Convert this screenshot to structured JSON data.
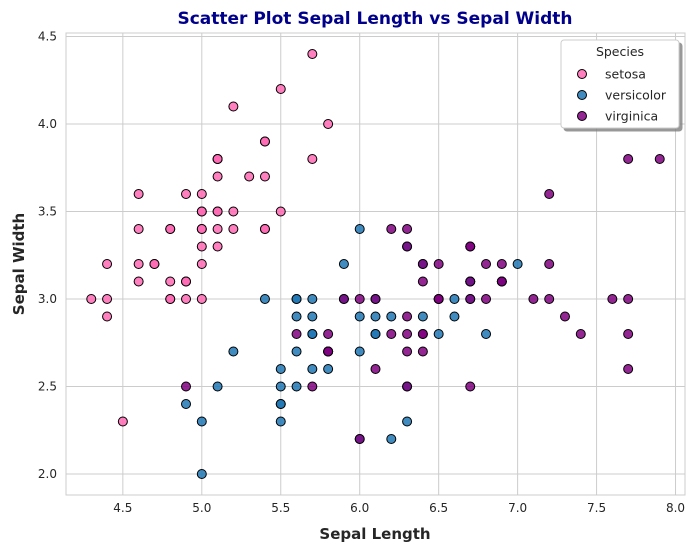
{
  "chart_data": {
    "type": "scatter",
    "title": "Scatter Plot Sepal Length vs Sepal Width",
    "title_color": "#00008b",
    "xlabel": "Sepal Length",
    "ylabel": "Sepal Width",
    "xlim": [
      4.14,
      8.06
    ],
    "ylim": [
      1.88,
      4.52
    ],
    "x_ticks": [
      4.5,
      5.0,
      5.5,
      6.0,
      6.5,
      7.0,
      7.5,
      8.0
    ],
    "x_tick_labels": [
      "4.5",
      "5.0",
      "5.5",
      "6.0",
      "6.5",
      "7.0",
      "7.5",
      "8.0"
    ],
    "y_ticks": [
      2.0,
      2.5,
      3.0,
      3.5,
      4.0,
      4.5
    ],
    "y_tick_labels": [
      "2.0",
      "2.5",
      "3.0",
      "3.5",
      "4.0",
      "4.5"
    ],
    "grid": true,
    "legend": {
      "title": "Species",
      "placement": "top-right"
    },
    "series": [
      {
        "name": "setosa",
        "color": "#ff69b4",
        "x": [
          5.1,
          4.9,
          4.7,
          4.6,
          5.0,
          5.4,
          4.6,
          5.0,
          4.4,
          4.9,
          5.4,
          4.8,
          4.8,
          4.3,
          5.8,
          5.7,
          5.4,
          5.1,
          5.7,
          5.1,
          5.4,
          5.1,
          4.6,
          5.1,
          4.8,
          5.0,
          5.0,
          5.2,
          5.2,
          4.7,
          4.8,
          5.4,
          5.2,
          5.5,
          4.9,
          5.0,
          5.5,
          4.9,
          4.4,
          5.1,
          5.0,
          4.5,
          4.4,
          5.0,
          5.1,
          4.8,
          5.1,
          4.6,
          5.3,
          5.0
        ],
        "y": [
          3.5,
          3.0,
          3.2,
          3.1,
          3.6,
          3.9,
          3.4,
          3.4,
          2.9,
          3.1,
          3.7,
          3.4,
          3.0,
          3.0,
          4.0,
          4.4,
          3.9,
          3.5,
          3.8,
          3.8,
          3.4,
          3.7,
          3.6,
          3.3,
          3.4,
          3.0,
          3.4,
          3.5,
          3.4,
          3.2,
          3.1,
          3.4,
          4.1,
          4.2,
          3.1,
          3.2,
          3.5,
          3.6,
          3.0,
          3.4,
          3.5,
          2.3,
          3.2,
          3.5,
          3.8,
          3.0,
          3.8,
          3.2,
          3.7,
          3.3
        ]
      },
      {
        "name": "versicolor",
        "color": "#1f77b4",
        "x": [
          7.0,
          6.4,
          6.9,
          5.5,
          6.5,
          5.7,
          6.3,
          4.9,
          6.6,
          5.2,
          5.0,
          5.9,
          6.0,
          6.1,
          5.6,
          6.7,
          5.6,
          5.8,
          6.2,
          5.6,
          5.9,
          6.1,
          6.3,
          6.1,
          6.4,
          6.6,
          6.8,
          6.7,
          6.0,
          5.7,
          5.5,
          5.5,
          5.8,
          6.0,
          5.4,
          6.0,
          6.7,
          6.3,
          5.6,
          5.5,
          5.5,
          6.1,
          5.8,
          5.0,
          5.6,
          5.7,
          5.7,
          6.2,
          5.1,
          5.7
        ],
        "y": [
          3.2,
          3.2,
          3.1,
          2.3,
          2.8,
          2.8,
          3.3,
          2.4,
          2.9,
          2.7,
          2.0,
          3.0,
          2.2,
          2.9,
          2.9,
          3.1,
          3.0,
          2.7,
          2.2,
          2.5,
          3.2,
          2.8,
          2.5,
          2.8,
          2.9,
          3.0,
          2.8,
          3.0,
          2.9,
          2.6,
          2.4,
          2.4,
          2.7,
          2.7,
          3.0,
          3.4,
          3.1,
          2.3,
          3.0,
          2.5,
          2.6,
          3.0,
          2.6,
          2.3,
          2.7,
          3.0,
          2.9,
          2.9,
          2.5,
          2.8
        ]
      },
      {
        "name": "virginica",
        "color": "#800080",
        "x": [
          6.3,
          5.8,
          7.1,
          6.3,
          6.5,
          7.6,
          4.9,
          7.3,
          6.7,
          7.2,
          6.5,
          6.4,
          6.8,
          5.7,
          5.8,
          6.4,
          6.5,
          7.7,
          7.7,
          6.0,
          6.9,
          5.6,
          7.7,
          6.3,
          6.7,
          7.2,
          6.2,
          6.1,
          6.4,
          7.2,
          7.4,
          7.9,
          6.4,
          6.3,
          6.1,
          7.7,
          6.3,
          6.4,
          6.0,
          6.9,
          6.7,
          6.9,
          5.8,
          6.8,
          6.7,
          6.7,
          6.3,
          6.5,
          6.2,
          5.9
        ],
        "y": [
          3.3,
          2.7,
          3.0,
          2.9,
          3.0,
          3.0,
          2.5,
          2.9,
          2.5,
          3.6,
          3.2,
          2.7,
          3.0,
          2.5,
          2.8,
          3.2,
          3.0,
          3.8,
          2.6,
          2.2,
          3.2,
          2.8,
          2.8,
          2.7,
          3.3,
          3.2,
          2.8,
          3.0,
          2.8,
          3.0,
          2.8,
          3.8,
          2.8,
          2.8,
          2.6,
          3.0,
          3.4,
          3.1,
          3.0,
          3.1,
          3.1,
          3.1,
          2.7,
          3.2,
          3.3,
          3.0,
          2.5,
          3.0,
          3.4,
          3.0
        ]
      }
    ]
  }
}
